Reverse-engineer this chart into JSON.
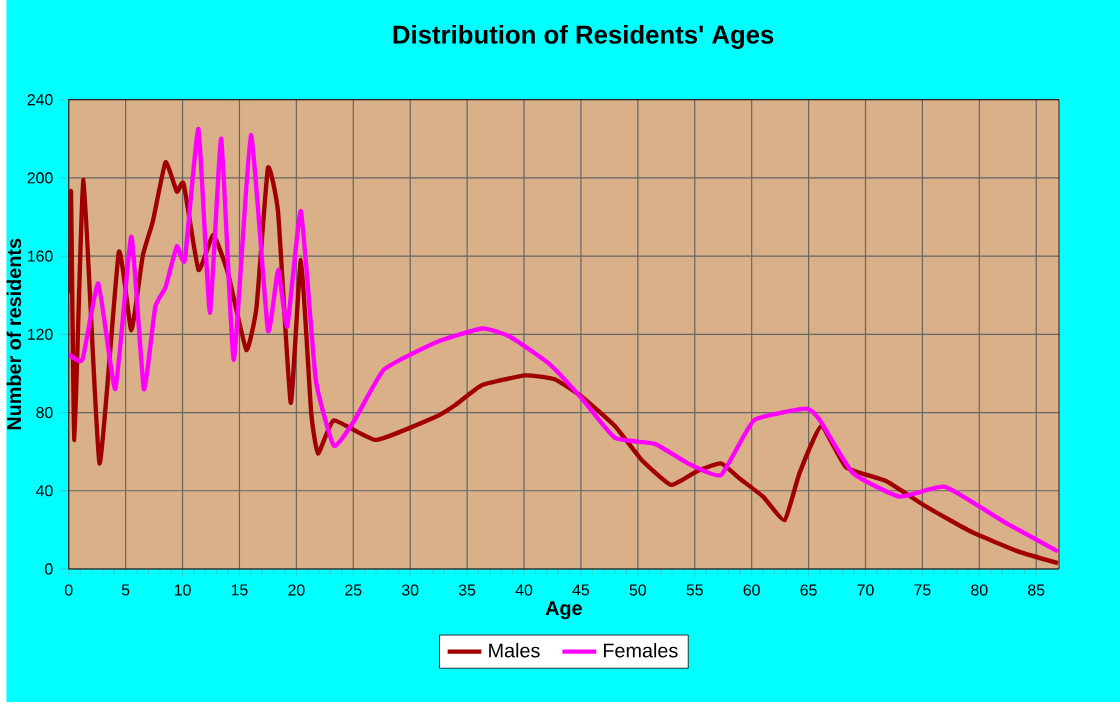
{
  "chart_data": {
    "type": "line",
    "title": "Distribution of Residents' Ages",
    "xlabel": "Age",
    "ylabel": "Number of residents",
    "xlim": [
      0,
      87
    ],
    "xticks": [
      0,
      5,
      10,
      15,
      20,
      25,
      30,
      35,
      40,
      45,
      50,
      55,
      60,
      65,
      70,
      75,
      80,
      85
    ],
    "ylim": [
      0,
      240
    ],
    "yticks": [
      0,
      40,
      80,
      120,
      160,
      200,
      240
    ],
    "grid": true,
    "legend": "bottom",
    "series": [
      {
        "name": "Males",
        "color": "#a00000",
        "x": [
          0,
          0.2,
          0.5,
          1.3,
          2.7,
          4.4,
          5.5,
          6.5,
          7.4,
          8.5,
          9.5,
          10.1,
          11.4,
          12.7,
          14,
          15.6,
          16.5,
          17.5,
          18.4,
          19.5,
          20.4,
          21.3,
          21.9,
          23.3,
          27,
          32.3,
          34,
          36.3,
          40.1,
          42.7,
          45.1,
          48,
          50.3,
          52.9,
          55.2,
          57.3,
          59,
          61,
          62.9,
          64.2,
          66.1,
          68.3,
          71.8,
          75.3,
          79.3,
          83.4,
          86.9
        ],
        "values": [
          141,
          193,
          66,
          199,
          54,
          162,
          122,
          160,
          178,
          208,
          193,
          197,
          153,
          171,
          151,
          112,
          134,
          205,
          182,
          85,
          158,
          80,
          59,
          76,
          66,
          78,
          84,
          94,
          99,
          97,
          88,
          73,
          56,
          43,
          50,
          54,
          46,
          37,
          25,
          49,
          73,
          52,
          45,
          32,
          19,
          9,
          3
        ]
      },
      {
        "name": "Females",
        "color": "#ff00ff",
        "x": [
          0,
          1.2,
          2.6,
          4.1,
          5.5,
          6.6,
          7.6,
          8.5,
          9.5,
          10.2,
          11.4,
          12.4,
          13.4,
          14.5,
          16,
          17.5,
          18.4,
          19.2,
          20.4,
          21.7,
          23.3,
          25.1,
          27.7,
          32.3,
          36.3,
          38.7,
          42.2,
          45.1,
          48,
          51.5,
          54.4,
          57.3,
          60.2,
          64.8,
          66,
          68.9,
          73,
          77,
          82.2,
          86.9
        ],
        "values": [
          110,
          107,
          146,
          92,
          170,
          92,
          134,
          144,
          165,
          158,
          225,
          131,
          220,
          107,
          222,
          122,
          153,
          124,
          183,
          97,
          63,
          76,
          102,
          116,
          123,
          119,
          105,
          87,
          67,
          64,
          54,
          48,
          76,
          82,
          76,
          49,
          37,
          42,
          24,
          9
        ]
      }
    ]
  }
}
